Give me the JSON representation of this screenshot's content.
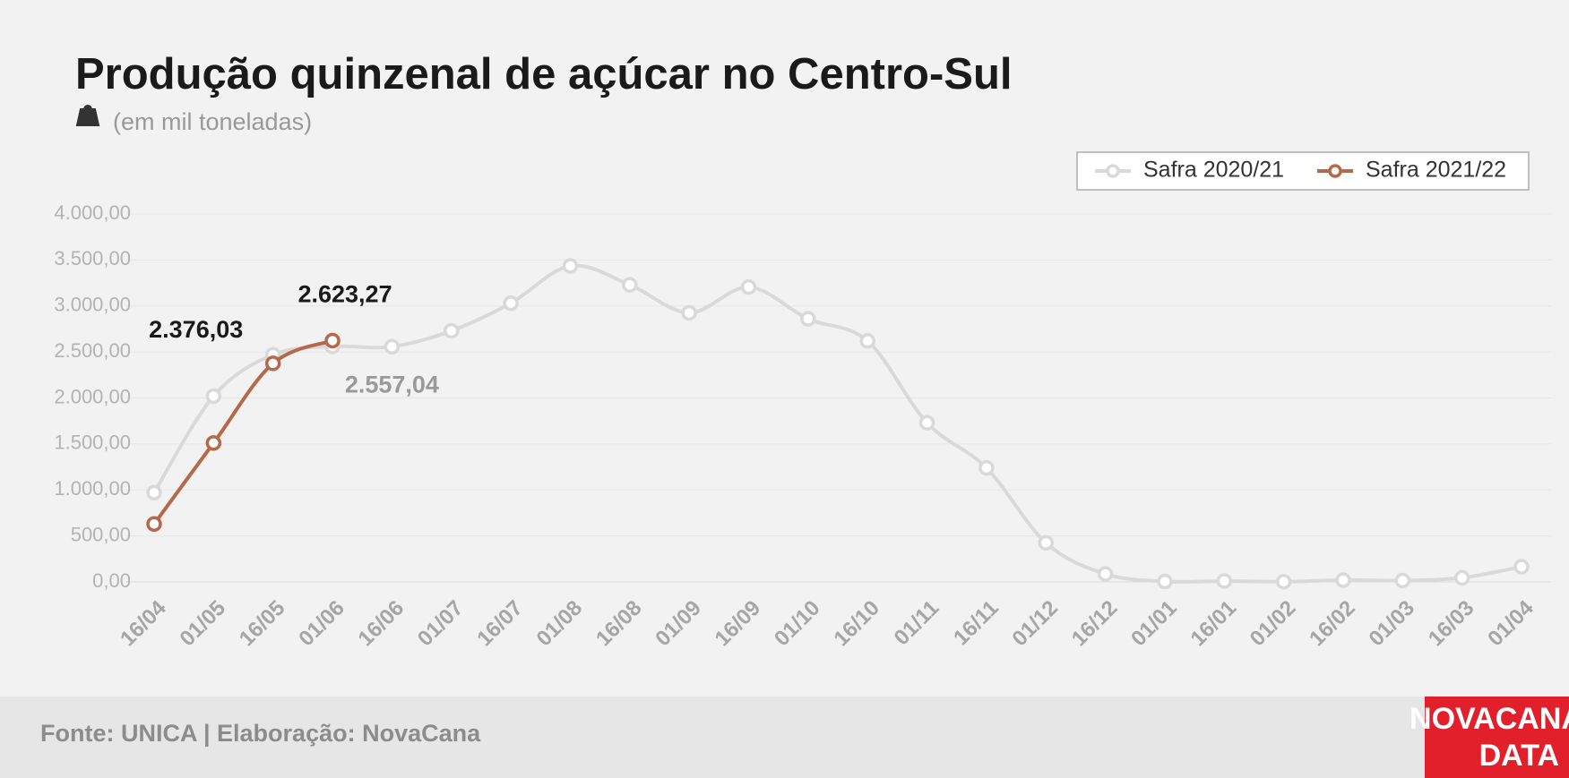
{
  "chart_data": {
    "type": "line",
    "title": "Produção quinzenal de açúcar no Centro-Sul",
    "subtitle": "(em mil toneladas)",
    "source": "Fonte: UNICA | Elaboração: NovaCana",
    "logo": [
      "NOVACANA",
      "DATA"
    ],
    "categories": [
      "16/04",
      "01/05",
      "16/05",
      "01/06",
      "16/06",
      "01/07",
      "16/07",
      "01/08",
      "16/08",
      "01/09",
      "16/09",
      "01/10",
      "16/10",
      "01/11",
      "16/11",
      "01/12",
      "16/12",
      "01/01",
      "16/01",
      "01/02",
      "16/02",
      "01/03",
      "16/03",
      "01/04"
    ],
    "series": [
      {
        "name": "Safra 2020/21",
        "color": "#d9d9d9",
        "values": [
          970,
          2020,
          2470,
          2560,
          2557.04,
          2730,
          3030,
          3435,
          3230,
          2925,
          3205,
          2860,
          2620,
          1730,
          1240,
          425,
          87,
          5,
          10,
          3,
          20,
          15,
          45,
          165
        ],
        "value_labels": [
          null,
          null,
          null,
          null,
          "2.557,04",
          null,
          null,
          null,
          null,
          null,
          null,
          null,
          null,
          null,
          null,
          null,
          null,
          null,
          null,
          null,
          null,
          null,
          null,
          null
        ]
      },
      {
        "name": "Safra 2021/22",
        "color": "#b5694a",
        "values": [
          630,
          1510,
          2376.03,
          2623.27,
          null,
          null,
          null,
          null,
          null,
          null,
          null,
          null,
          null,
          null,
          null,
          null,
          null,
          null,
          null,
          null,
          null,
          null,
          null,
          null
        ],
        "value_labels": [
          null,
          null,
          "2.376,03",
          "2.623,27",
          null,
          null,
          null,
          null,
          null,
          null,
          null,
          null,
          null,
          null,
          null,
          null,
          null,
          null,
          null,
          null,
          null,
          null,
          null,
          null
        ]
      }
    ],
    "ylim": [
      0,
      4000
    ],
    "yticks": [
      {
        "value": 0,
        "label": "0,00"
      },
      {
        "value": 500,
        "label": "500,00"
      },
      {
        "value": 1000,
        "label": "1.000,00"
      },
      {
        "value": 1500,
        "label": "1.500,00"
      },
      {
        "value": 2000,
        "label": "2.000,00"
      },
      {
        "value": 2500,
        "label": "2.500,00"
      },
      {
        "value": 3000,
        "label": "3.000,00"
      },
      {
        "value": 3500,
        "label": "3.500,00"
      },
      {
        "value": 4000,
        "label": "4.000,00"
      }
    ],
    "grid": true,
    "legend": "top-right"
  }
}
